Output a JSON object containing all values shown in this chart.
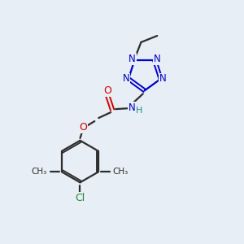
{
  "background_color": "#e8eef5",
  "bond_color": "#2d2d2d",
  "nitrogen_color": "#0000cc",
  "oxygen_color": "#cc0000",
  "chlorine_color": "#228833",
  "nh_color": "#228888",
  "figsize": [
    3.0,
    3.0
  ],
  "dpi": 100,
  "xlim": [
    0,
    300
  ],
  "ylim": [
    0,
    300
  ]
}
